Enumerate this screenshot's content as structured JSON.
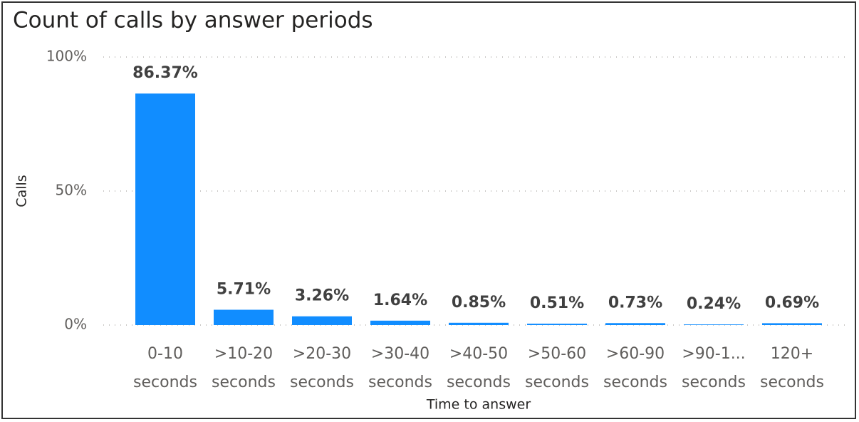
{
  "chart_data": {
    "type": "bar",
    "title": "Count of calls by answer periods",
    "x_label": "Time to answer",
    "y_label": "Calls",
    "categories": [
      "0-10 seconds",
      ">10-20 seconds",
      ">20-30 seconds",
      ">30-40 seconds",
      ">40-50 seconds",
      ">50-60 seconds",
      ">60-90 seconds",
      ">90-1... seconds",
      "120+ seconds"
    ],
    "values": [
      86.37,
      5.71,
      3.26,
      1.64,
      0.85,
      0.51,
      0.73,
      0.24,
      0.69
    ],
    "value_labels": [
      "86.37%",
      "5.71%",
      "3.26%",
      "1.64%",
      "0.85%",
      "0.51%",
      "0.73%",
      "0.24%",
      "0.69%"
    ],
    "color": "#118dff",
    "ylim": [
      0,
      100
    ],
    "yticks": [
      {
        "value": 0,
        "label": "0%"
      },
      {
        "value": 50,
        "label": "50%"
      },
      {
        "value": 100,
        "label": "100%"
      }
    ],
    "grid": true
  }
}
